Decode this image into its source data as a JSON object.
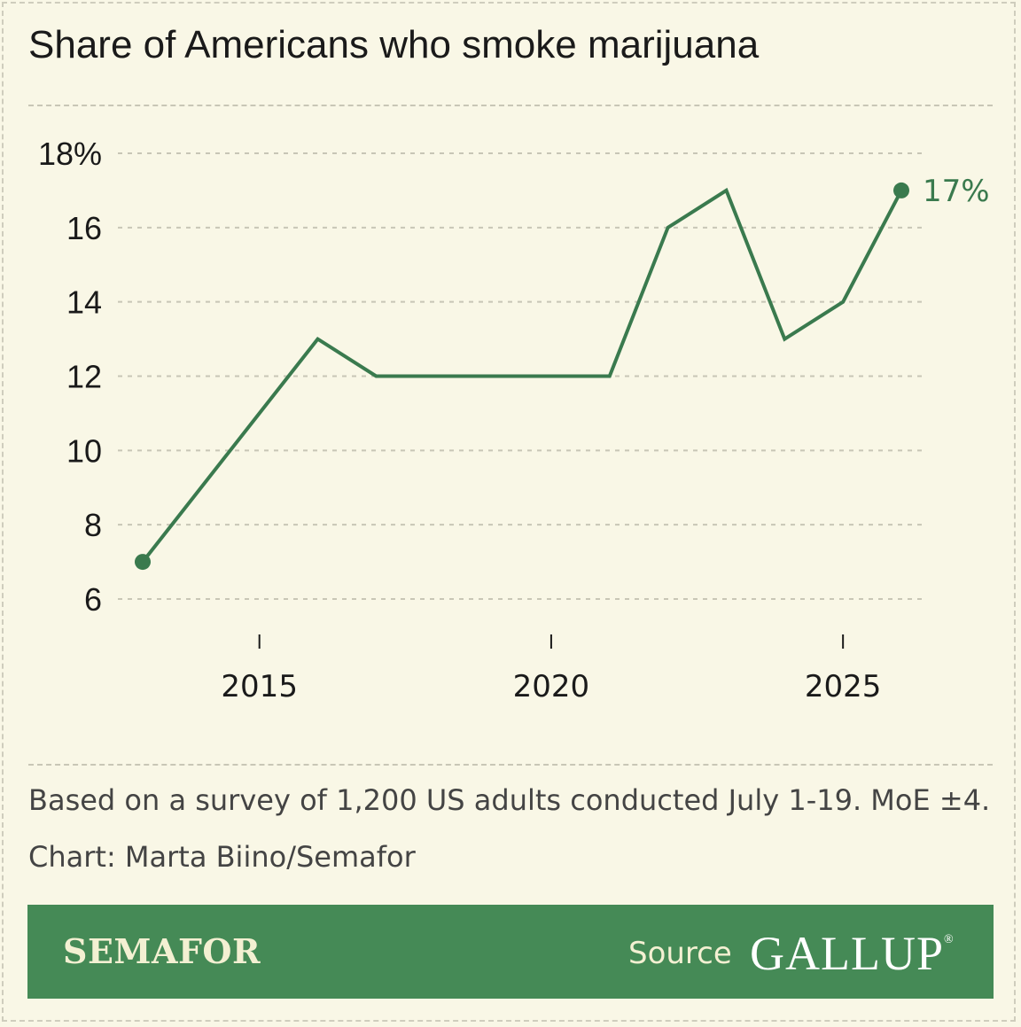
{
  "colors": {
    "background": "#f9f7e6",
    "line": "#3a7a4e",
    "grid": "#c8c6b6",
    "footer": "#458a56"
  },
  "chart_data": {
    "type": "line",
    "title": "Share of Americans who smoke marijuana",
    "x": [
      2013,
      2015,
      2016,
      2017,
      2018,
      2019,
      2020,
      2021,
      2022,
      2023,
      2024,
      2025,
      2026
    ],
    "values": [
      7,
      11,
      13,
      12,
      12,
      12,
      12,
      12,
      16,
      17,
      13,
      14,
      17
    ],
    "ylim": [
      6,
      18
    ],
    "yticks": [
      18,
      16,
      14,
      12,
      10,
      8,
      6
    ],
    "ytick_labels": [
      "18%",
      "16",
      "14",
      "12",
      "10",
      "8",
      "6"
    ],
    "xticks": [
      2015,
      2020,
      2025
    ],
    "xtick_labels": [
      "2015",
      "2020",
      "2025"
    ],
    "end_label": "17%",
    "grid": "horizontal dashed",
    "legend": "none"
  },
  "notes": {
    "survey": "Based on a survey of 1,200 US adults conducted July 1-19. MoE ±4.",
    "credit": "Chart: Marta Biino/Semafor"
  },
  "footer": {
    "brand": "SEMAFOR",
    "source_label": "Source",
    "source_name": "GALLUP",
    "registered": "®"
  }
}
